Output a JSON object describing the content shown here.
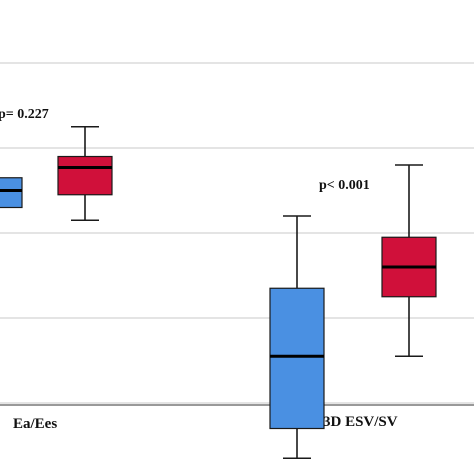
{
  "chart_data": {
    "type": "box",
    "categories": [
      "Ea/Ees",
      "3D ESV/SV"
    ],
    "series_colors": [
      "#4a90e2",
      "#d0103a"
    ],
    "boxes": [
      {
        "category": "Ea/Ees",
        "series": 0,
        "min": null,
        "q1": 1.3,
        "median": 1.5,
        "q3": 1.65,
        "max": null
      },
      {
        "category": "Ea/Ees",
        "series": 1,
        "min": 1.15,
        "q1": 1.45,
        "median": 1.77,
        "q3": 1.9,
        "max": 2.25
      },
      {
        "category": "3D ESV/SV",
        "series": 0,
        "min": -1.65,
        "q1": -1.3,
        "median": -0.45,
        "q3": 0.35,
        "max": 1.2
      },
      {
        "category": "3D ESV/SV",
        "series": 1,
        "min": -0.45,
        "q1": 0.25,
        "median": 0.6,
        "q3": 0.95,
        "max": 1.8
      }
    ],
    "annotations": [
      {
        "category": "Ea/Ees",
        "text": "p= 0.227"
      },
      {
        "category": "3D ESV/SV",
        "text": "p< 0.001"
      }
    ],
    "ylim": [
      -2.0,
      3.0
    ],
    "yticks": [
      -1.0,
      0.0,
      1.0,
      2.0,
      3.0
    ],
    "grid": true,
    "xlabel": "",
    "ylabel": "",
    "title": ""
  }
}
